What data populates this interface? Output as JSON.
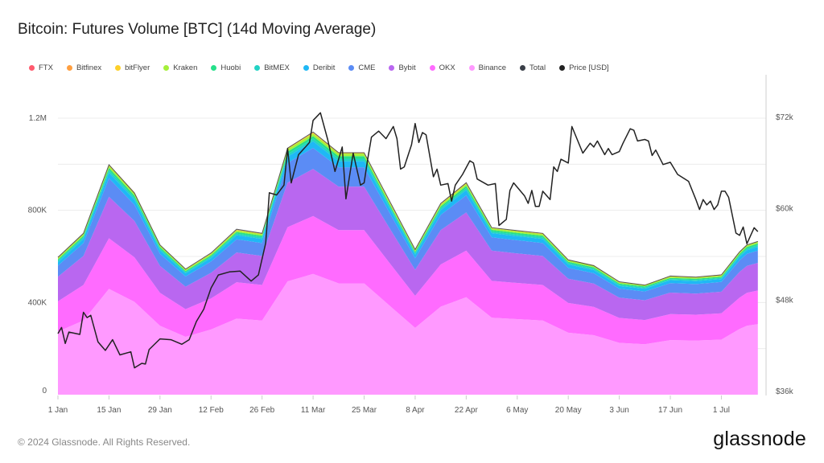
{
  "title": "Bitcoin: Futures Volume [BTC] (14d Moving Average)",
  "footer": "© 2024 Glassnode. All Rights Reserved.",
  "logo": "glassnode",
  "legend": [
    {
      "label": "FTX",
      "color": "#ff5a6e"
    },
    {
      "label": "Bitfinex",
      "color": "#ff9f40"
    },
    {
      "label": "bitFlyer",
      "color": "#fdd02a"
    },
    {
      "label": "Kraken",
      "color": "#a5f03a"
    },
    {
      "label": "Huobi",
      "color": "#25e08a"
    },
    {
      "label": "BitMEX",
      "color": "#22d3c5"
    },
    {
      "label": "Deribit",
      "color": "#1fb8f5"
    },
    {
      "label": "CME",
      "color": "#5b8cf5"
    },
    {
      "label": "Bybit",
      "color": "#b967f0"
    },
    {
      "label": "OKX",
      "color": "#ff6bff"
    },
    {
      "label": "Binance",
      "color": "#ff99ff"
    },
    {
      "label": "Total",
      "color": "#3a3f48"
    },
    {
      "label": "Price [USD]",
      "color": "#222222"
    }
  ],
  "chart_data": {
    "type": "area",
    "stacked": true,
    "title": "Bitcoin: Futures Volume [BTC] (14d Moving Average)",
    "x_ticks": [
      "1 Jan",
      "15 Jan",
      "29 Jan",
      "12 Feb",
      "26 Feb",
      "11 Mar",
      "25 Mar",
      "8 Apr",
      "22 Apr",
      "6 May",
      "20 May",
      "3 Jun",
      "17 Jun",
      "1 Jul"
    ],
    "x_tick_dates": [
      "2024-01-01",
      "2024-01-15",
      "2024-01-29",
      "2024-02-12",
      "2024-02-26",
      "2024-03-11",
      "2024-03-25",
      "2024-04-08",
      "2024-04-22",
      "2024-05-06",
      "2024-05-20",
      "2024-06-03",
      "2024-06-17",
      "2024-07-01"
    ],
    "xlim": [
      "2024-01-01",
      "2024-07-11"
    ],
    "y_left": {
      "ticks": [
        0,
        400000,
        800000,
        1200000
      ],
      "tick_labels": [
        "0",
        "400K",
        "800K",
        "1.2M"
      ],
      "ylim": [
        0,
        1300000
      ]
    },
    "y_right": {
      "ticks": [
        36000,
        48000,
        60000,
        72000
      ],
      "tick_labels": [
        "$36k",
        "$48k",
        "$60k",
        "$72k"
      ],
      "ylim": [
        36000,
        76000
      ],
      "scale": "linear"
    },
    "grid": true,
    "legend_position": "top",
    "x": [
      "2024-01-01",
      "2024-01-08",
      "2024-01-15",
      "2024-01-22",
      "2024-01-29",
      "2024-02-05",
      "2024-02-12",
      "2024-02-19",
      "2024-02-26",
      "2024-03-04",
      "2024-03-11",
      "2024-03-18",
      "2024-03-25",
      "2024-04-01",
      "2024-04-08",
      "2024-04-15",
      "2024-04-22",
      "2024-04-29",
      "2024-05-06",
      "2024-05-13",
      "2024-05-20",
      "2024-05-27",
      "2024-06-03",
      "2024-06-10",
      "2024-06-17",
      "2024-06-24",
      "2024-07-01",
      "2024-07-06",
      "2024-07-08",
      "2024-07-11"
    ],
    "series": [
      {
        "name": "Binance",
        "color": "#ff99ff",
        "values": [
          274000,
          322000,
          459000,
          403000,
          299000,
          251000,
          283000,
          330000,
          322000,
          492000,
          524000,
          483000,
          483000,
          386000,
          290000,
          382000,
          423000,
          334000,
          328000,
          322000,
          269000,
          258000,
          225000,
          219000,
          237000,
          235000,
          239000,
          285000,
          299000,
          306000
        ]
      },
      {
        "name": "OKX",
        "color": "#ff6bff",
        "values": [
          131000,
          154000,
          220000,
          193000,
          143000,
          120000,
          135000,
          158000,
          154000,
          235000,
          251000,
          231000,
          231000,
          185000,
          139000,
          183000,
          202000,
          160000,
          157000,
          154000,
          129000,
          123000,
          108000,
          105000,
          113000,
          112000,
          114000,
          136000,
          143000,
          146000
        ]
      },
      {
        "name": "Bybit",
        "color": "#b967f0",
        "values": [
          107000,
          126000,
          180000,
          158000,
          117000,
          98000,
          111000,
          129000,
          126000,
          193000,
          205000,
          189000,
          189000,
          151000,
          113000,
          149000,
          166000,
          131000,
          128000,
          126000,
          105000,
          101000,
          88000,
          86000,
          93000,
          92000,
          94000,
          112000,
          117000,
          120000
        ]
      },
      {
        "name": "CME",
        "color": "#5b8cf5",
        "values": [
          48000,
          56000,
          80000,
          70000,
          52000,
          44000,
          49000,
          57000,
          56000,
          86000,
          91000,
          84000,
          84000,
          67000,
          50000,
          66000,
          74000,
          58000,
          57000,
          56000,
          47000,
          45000,
          39000,
          38000,
          41000,
          41000,
          42000,
          50000,
          52000,
          53000
        ]
      },
      {
        "name": "Deribit",
        "color": "#1fb8f5",
        "values": [
          15000,
          18000,
          25000,
          22000,
          16000,
          14000,
          15000,
          18000,
          18000,
          27000,
          29000,
          26000,
          26000,
          21000,
          16000,
          21000,
          23000,
          18000,
          18000,
          18000,
          15000,
          14000,
          12000,
          12000,
          13000,
          13000,
          13000,
          16000,
          16000,
          17000
        ]
      },
      {
        "name": "BitMEX",
        "color": "#22d3c5",
        "values": [
          6000,
          7000,
          10000,
          9000,
          7000,
          5000,
          6000,
          7000,
          7000,
          11000,
          11000,
          11000,
          11000,
          8000,
          6000,
          8000,
          9000,
          7000,
          7000,
          7000,
          6000,
          6000,
          5000,
          5000,
          5000,
          5000,
          5000,
          6000,
          7000,
          7000
        ]
      },
      {
        "name": "Huobi",
        "color": "#25e08a",
        "values": [
          6000,
          7000,
          10000,
          9000,
          7000,
          5000,
          6000,
          7000,
          7000,
          11000,
          11000,
          11000,
          11000,
          8000,
          6000,
          8000,
          9000,
          7000,
          7000,
          7000,
          6000,
          6000,
          5000,
          5000,
          5000,
          5000,
          5000,
          6000,
          7000,
          7000
        ]
      },
      {
        "name": "Kraken",
        "color": "#a5f03a",
        "values": [
          6000,
          7000,
          10000,
          9000,
          7000,
          5000,
          6000,
          7000,
          7000,
          11000,
          11000,
          11000,
          11000,
          8000,
          6000,
          8000,
          9000,
          7000,
          7000,
          7000,
          6000,
          6000,
          5000,
          5000,
          5000,
          5000,
          5000,
          6000,
          7000,
          7000
        ]
      },
      {
        "name": "bitFlyer",
        "color": "#fdd02a",
        "values": [
          2000,
          2000,
          3000,
          3000,
          2000,
          2000,
          2000,
          2000,
          2000,
          3000,
          3000,
          3000,
          3000,
          3000,
          2000,
          2000,
          3000,
          2000,
          2000,
          2000,
          2000,
          2000,
          1000,
          1000,
          2000,
          2000,
          2000,
          2000,
          2000,
          2000
        ]
      },
      {
        "name": "Bitfinex",
        "color": "#ff9f40",
        "values": [
          1000,
          1000,
          2000,
          2000,
          1000,
          1000,
          1000,
          1000,
          1000,
          2000,
          2000,
          2000,
          2000,
          2000,
          1000,
          2000,
          2000,
          1000,
          1000,
          1000,
          1000,
          1000,
          1000,
          1000,
          1000,
          1000,
          1000,
          1000,
          1000,
          1000
        ]
      },
      {
        "name": "FTX",
        "color": "#ff5a6e",
        "values": [
          0,
          0,
          0,
          0,
          0,
          0,
          0,
          0,
          0,
          0,
          0,
          0,
          0,
          0,
          0,
          0,
          0,
          0,
          0,
          0,
          0,
          0,
          0,
          0,
          0,
          0,
          0,
          0,
          0,
          0
        ]
      }
    ],
    "total": {
      "name": "Total",
      "color": "#3a3f48",
      "values": [
        596000,
        700000,
        998000,
        875000,
        650000,
        545000,
        615000,
        718000,
        700000,
        1070000,
        1140000,
        1050000,
        1050000,
        840000,
        630000,
        830000,
        920000,
        725000,
        712000,
        700000,
        585000,
        560000,
        490000,
        475000,
        515000,
        510000,
        520000,
        620000,
        650000,
        665000
      ]
    },
    "price": {
      "name": "Price [USD]",
      "color": "#222222",
      "axis": "right",
      "x": [
        "2024-01-01",
        "2024-01-02",
        "2024-01-03",
        "2024-01-04",
        "2024-01-07",
        "2024-01-08",
        "2024-01-09",
        "2024-01-10",
        "2024-01-12",
        "2024-01-14",
        "2024-01-16",
        "2024-01-18",
        "2024-01-21",
        "2024-01-22",
        "2024-01-24",
        "2024-01-25",
        "2024-01-26",
        "2024-01-29",
        "2024-02-01",
        "2024-02-04",
        "2024-02-06",
        "2024-02-08",
        "2024-02-10",
        "2024-02-12",
        "2024-02-14",
        "2024-02-17",
        "2024-02-20",
        "2024-02-23",
        "2024-02-25",
        "2024-02-27",
        "2024-02-28",
        "2024-03-01",
        "2024-03-03",
        "2024-03-04",
        "2024-03-05",
        "2024-03-07",
        "2024-03-10",
        "2024-03-11",
        "2024-03-13",
        "2024-03-15",
        "2024-03-17",
        "2024-03-19",
        "2024-03-20",
        "2024-03-22",
        "2024-03-24",
        "2024-03-25",
        "2024-03-26",
        "2024-03-27",
        "2024-03-29",
        "2024-03-31",
        "2024-04-02",
        "2024-04-03",
        "2024-04-04",
        "2024-04-05",
        "2024-04-07",
        "2024-04-08",
        "2024-04-09",
        "2024-04-10",
        "2024-04-11",
        "2024-04-13",
        "2024-04-14",
        "2024-04-15",
        "2024-04-17",
        "2024-04-18",
        "2024-04-19",
        "2024-04-21",
        "2024-04-23",
        "2024-04-24",
        "2024-04-25",
        "2024-04-28",
        "2024-04-30",
        "2024-05-01",
        "2024-05-03",
        "2024-05-04",
        "2024-05-05",
        "2024-05-08",
        "2024-05-09",
        "2024-05-10",
        "2024-05-11",
        "2024-05-12",
        "2024-05-13",
        "2024-05-15",
        "2024-05-16",
        "2024-05-17",
        "2024-05-18",
        "2024-05-20",
        "2024-05-21",
        "2024-05-24",
        "2024-05-26",
        "2024-05-27",
        "2024-05-28",
        "2024-05-30",
        "2024-05-31",
        "2024-06-01",
        "2024-06-03",
        "2024-06-04",
        "2024-06-06",
        "2024-06-07",
        "2024-06-08",
        "2024-06-10",
        "2024-06-11",
        "2024-06-12",
        "2024-06-13",
        "2024-06-15",
        "2024-06-17",
        "2024-06-19",
        "2024-06-21",
        "2024-06-22",
        "2024-06-24",
        "2024-06-25",
        "2024-06-26",
        "2024-06-27",
        "2024-06-28",
        "2024-06-29",
        "2024-06-30",
        "2024-07-01",
        "2024-07-02",
        "2024-07-03",
        "2024-07-05",
        "2024-07-06",
        "2024-07-07",
        "2024-07-08",
        "2024-07-10",
        "2024-07-11"
      ],
      "values": [
        43600,
        44400,
        42300,
        43800,
        43500,
        46400,
        45700,
        46000,
        42500,
        41400,
        42800,
        40800,
        41200,
        39100,
        39700,
        39600,
        41500,
        42900,
        42800,
        42200,
        42800,
        45200,
        46800,
        49600,
        51300,
        51700,
        51800,
        50500,
        51300,
        55500,
        62100,
        61800,
        63100,
        67900,
        63400,
        67100,
        68700,
        71600,
        72600,
        69100,
        64900,
        68100,
        61300,
        67300,
        63100,
        63400,
        66600,
        69400,
        70200,
        69200,
        70800,
        69200,
        65200,
        65500,
        68400,
        71200,
        68700,
        70000,
        69700,
        64200,
        65200,
        63100,
        63300,
        61000,
        63100,
        64500,
        66300,
        66000,
        63900,
        63100,
        63300,
        57800,
        58600,
        62400,
        63400,
        61700,
        60700,
        62400,
        60300,
        60300,
        62300,
        61200,
        65500,
        64900,
        66500,
        66000,
        70800,
        67300,
        68600,
        68100,
        68900,
        67100,
        67900,
        67100,
        67500,
        68600,
        70500,
        70300,
        68900,
        69100,
        68900,
        67000,
        67700,
        65800,
        66100,
        64500,
        63900,
        63600,
        61200,
        59900,
        61200,
        60500,
        61000,
        59900,
        60500,
        62300,
        62300,
        61500,
        56800,
        56500,
        57600,
        55400,
        57500,
        57000
      ]
    }
  }
}
